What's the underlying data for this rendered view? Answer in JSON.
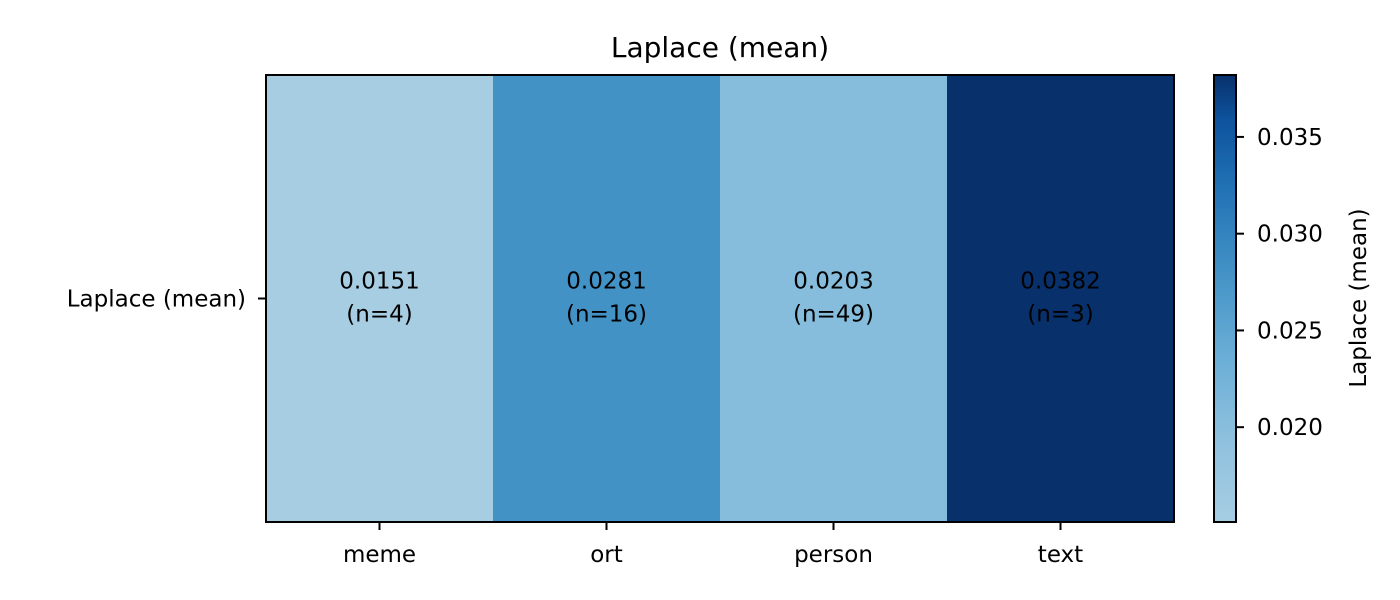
{
  "chart_data": {
    "type": "heatmap",
    "title": "Laplace (mean)",
    "row_labels": [
      "Laplace (mean)"
    ],
    "categories": [
      "meme",
      "ort",
      "person",
      "text"
    ],
    "values": [
      0.0151,
      0.0281,
      0.0203,
      0.0382
    ],
    "cell_labels": [
      "0.0151",
      "0.0281",
      "0.0203",
      "0.0382"
    ],
    "counts": [
      "(n=4)",
      "(n=16)",
      "(n=49)",
      "(n=3)"
    ],
    "colormap": "Blues",
    "color_range": [
      0.0151,
      0.0382
    ],
    "colorbar": {
      "label": "Laplace (mean)",
      "ticks": [
        0.02,
        0.025,
        0.03,
        0.035
      ],
      "tick_labels": [
        "0.020",
        "0.025",
        "0.030",
        "0.035"
      ]
    },
    "colors": {
      "low": "#a6cde2",
      "mid_low": "#71afd7",
      "mid_high": "#3282bd",
      "high": "#08306b"
    },
    "grid": false
  }
}
